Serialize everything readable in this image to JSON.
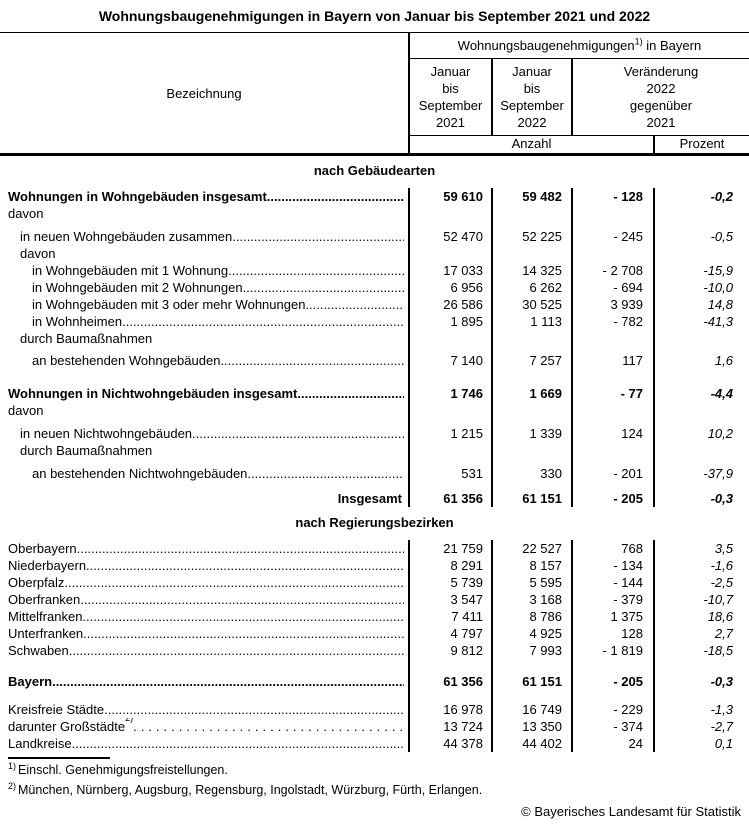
{
  "title": "Wohnungsbaugenehmigungen in Bayern von Januar bis September 2021 und 2022",
  "header": {
    "bezeichnung": "Bezeichnung",
    "group_prefix": "Wohnungsbaugenehmigungen",
    "group_sup": "1)",
    "group_suffix": " in Bayern",
    "col_2021": "Januar\nbis\nSeptember\n2021",
    "col_2022": "Januar\nbis\nSeptember\n2022",
    "col_change": "Veränderung\n2022\ngegenüber\n2021",
    "unit_anzahl": "Anzahl",
    "unit_prozent": "Prozent"
  },
  "sections": [
    {
      "heading": "nach Gebäudearten",
      "rows": [
        {
          "label": "Wohnungen in Wohngebäuden insgesamt",
          "indent": 0,
          "bold": true,
          "leader": true,
          "values": [
            "59 610",
            "59 482",
            "- 128",
            "-0,2"
          ]
        },
        {
          "label": "davon",
          "indent": 0
        },
        {
          "label": "in neuen Wohngebäuden zusammen",
          "indent": 1,
          "leader": true,
          "gap": 6,
          "values": [
            "52 470",
            "52 225",
            "- 245",
            "-0,5"
          ]
        },
        {
          "label": "davon",
          "indent": 1
        },
        {
          "label": "in Wohngebäuden mit 1 Wohnung",
          "indent": 2,
          "leader": true,
          "values": [
            "17 033",
            "14 325",
            "- 2 708",
            "-15,9"
          ]
        },
        {
          "label": "in Wohngebäuden mit 2 Wohnungen",
          "indent": 2,
          "leader": true,
          "values": [
            "6 956",
            "6 262",
            "- 694",
            "-10,0"
          ]
        },
        {
          "label": "in Wohngebäuden mit 3 oder mehr Wohnungen",
          "indent": 2,
          "leader": true,
          "values": [
            "26 586",
            "30 525",
            "3 939",
            "14,8"
          ]
        },
        {
          "label": "in Wohnheimen",
          "indent": 2,
          "leader": true,
          "values": [
            "1 895",
            "1 113",
            "- 782",
            "-41,3"
          ]
        },
        {
          "label": "durch Baumaßnahmen",
          "indent": 1
        },
        {
          "label": "an bestehenden Wohngebäuden",
          "indent": 2,
          "leader": true,
          "gap": 5,
          "values": [
            "7 140",
            "7 257",
            "117",
            "1,6"
          ]
        },
        {
          "label": "Wohnungen in Nichtwohngebäuden insgesamt",
          "indent": 0,
          "bold": true,
          "leader": true,
          "gap": 16,
          "values": [
            "1 746",
            "1 669",
            "- 77",
            "-4,4"
          ]
        },
        {
          "label": "davon",
          "indent": 0
        },
        {
          "label": "in neuen Nichtwohngebäuden",
          "indent": 1,
          "leader": true,
          "gap": 6,
          "values": [
            "1 215",
            "1 339",
            "124",
            "10,2"
          ]
        },
        {
          "label": "durch Baumaßnahmen",
          "indent": 1
        },
        {
          "label": "an bestehenden Nichtwohngebäuden",
          "indent": 2,
          "leader": true,
          "gap": 6,
          "values": [
            "531",
            "330",
            "- 201",
            "-37,9"
          ]
        },
        {
          "label": "Insgesamt",
          "indent": 0,
          "bold": true,
          "align_right": true,
          "gap": 8,
          "values": [
            "61 356",
            "61 151",
            "- 205",
            "-0,3"
          ]
        }
      ]
    },
    {
      "heading": "nach Regierungsbezirken",
      "rows": [
        {
          "label": "Oberbayern",
          "indent": 0,
          "leader": true,
          "values": [
            "21 759",
            "22 527",
            "768",
            "3,5"
          ]
        },
        {
          "label": "Niederbayern",
          "indent": 0,
          "leader": true,
          "values": [
            "8 291",
            "8 157",
            "- 134",
            "-1,6"
          ]
        },
        {
          "label": "Oberpfalz",
          "indent": 0,
          "leader": true,
          "values": [
            "5 739",
            "5 595",
            "- 144",
            "-2,5"
          ]
        },
        {
          "label": "Oberfranken",
          "indent": 0,
          "leader": true,
          "values": [
            "3 547",
            "3 168",
            "- 379",
            "-10,7"
          ]
        },
        {
          "label": "Mittelfranken",
          "indent": 0,
          "leader": true,
          "values": [
            "7 411",
            "8 786",
            "1 375",
            "18,6"
          ]
        },
        {
          "label": "Unterfranken",
          "indent": 0,
          "leader": true,
          "values": [
            "4 797",
            "4 925",
            "128",
            "2,7"
          ]
        },
        {
          "label": "Schwaben",
          "indent": 0,
          "leader": true,
          "values": [
            "9 812",
            "7 993",
            "- 1 819",
            "-18,5"
          ]
        },
        {
          "label": "Bayern",
          "indent": 0,
          "bold": true,
          "leader": true,
          "gap": 14,
          "values": [
            "61 356",
            "61 151",
            "- 205",
            "-0,3"
          ]
        },
        {
          "label": "Kreisfreie Städte",
          "indent": 0,
          "leader": true,
          "gap": 11,
          "values": [
            "16 978",
            "16 749",
            "- 229",
            "-1,3"
          ]
        },
        {
          "label": "darunter Großstädte",
          "sup": "2)",
          "indent": 0,
          "leader": "spaced",
          "values": [
            "13 724",
            "13 350",
            "- 374",
            "-2,7"
          ]
        },
        {
          "label": "Landkreise",
          "indent": 0,
          "leader": true,
          "values": [
            "44 378",
            "44 402",
            "24",
            "0,1"
          ]
        }
      ]
    }
  ],
  "footnotes": [
    {
      "sup": "1)",
      "text": "Einschl. Genehmigungsfreistellungen."
    },
    {
      "sup": "2)",
      "text": "München, Nürnberg, Augsburg, Regensburg, Ingolstadt, Würzburg, Fürth, Erlangen."
    }
  ],
  "copyright": "© Bayerisches Landesamt für Statistik"
}
